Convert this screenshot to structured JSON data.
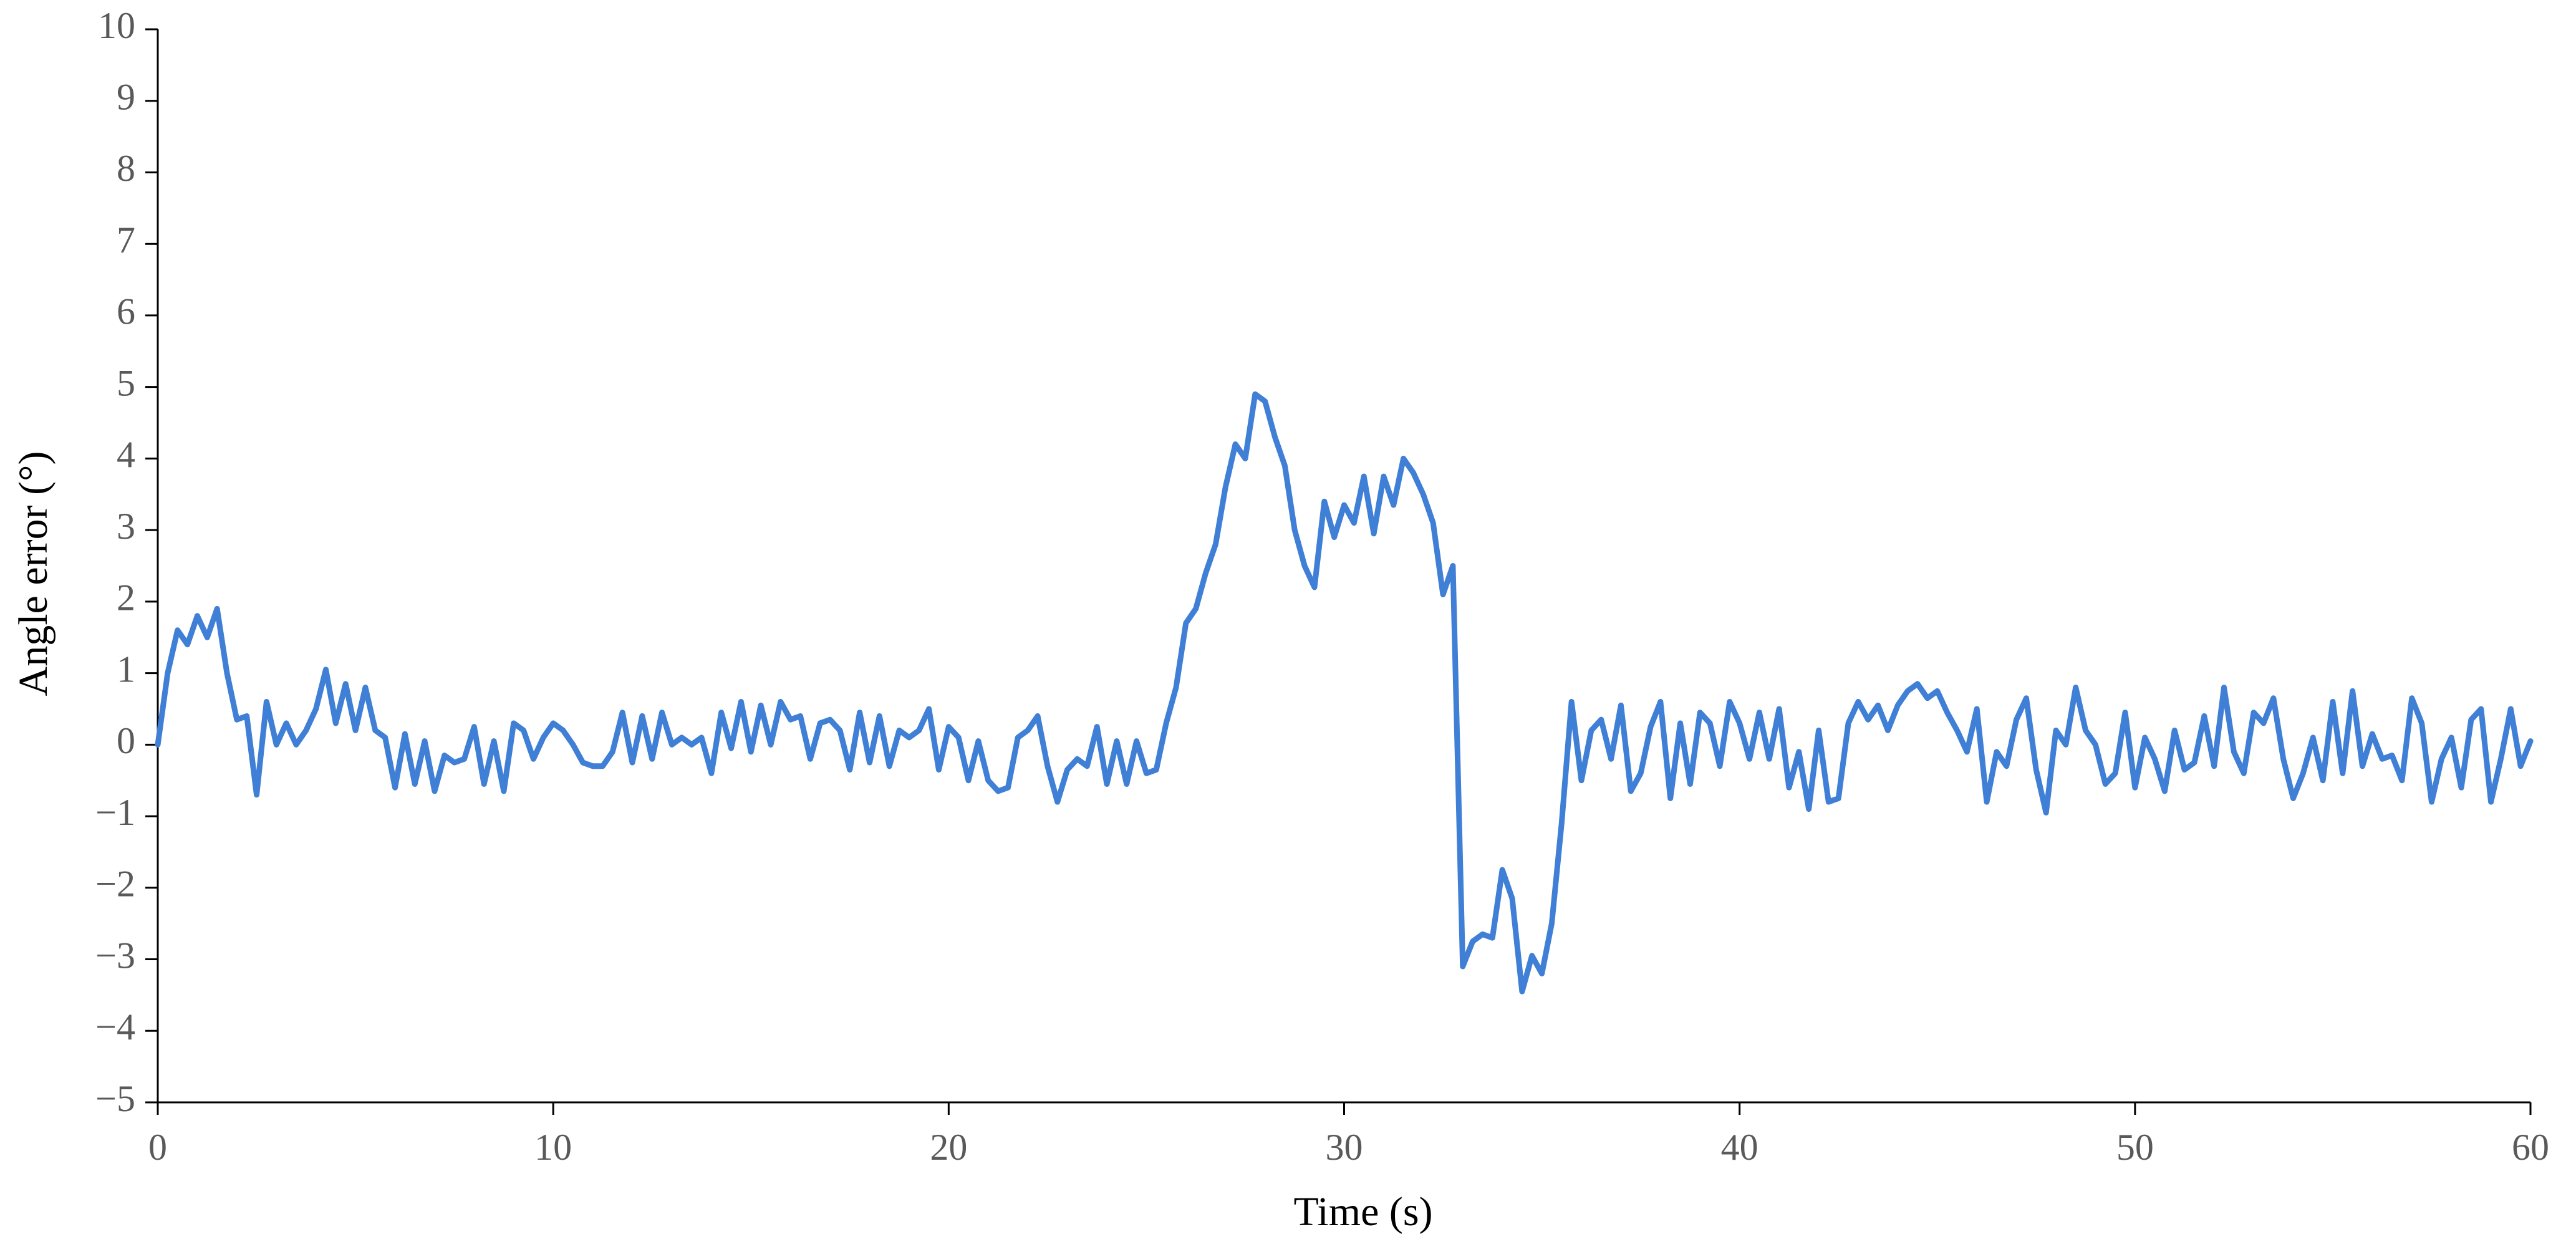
{
  "chart_data": {
    "type": "line",
    "xlabel": "Time (s)",
    "ylabel": "Angle error (°)",
    "color": "#3f7fd6",
    "xlim": [
      0,
      60
    ],
    "xticks": [
      0,
      10,
      20,
      30,
      40,
      50,
      60
    ],
    "ylim": [
      -5,
      10
    ],
    "yticks": [
      {
        "value": -5,
        "label": "−5"
      },
      {
        "value": -4,
        "label": "−4"
      },
      {
        "value": -3,
        "label": "−3"
      },
      {
        "value": -2,
        "label": "−2"
      },
      {
        "value": -1,
        "label": "−1"
      },
      0,
      1,
      2,
      3,
      4,
      5,
      6,
      7,
      8,
      9,
      10
    ],
    "grid": false,
    "x": [
      0,
      0.25,
      0.5,
      0.75,
      1,
      1.25,
      1.5,
      1.75,
      2,
      2.25,
      2.5,
      2.75,
      3,
      3.25,
      3.5,
      3.75,
      4,
      4.25,
      4.5,
      4.75,
      5,
      5.25,
      5.5,
      5.75,
      6,
      6.25,
      6.5,
      6.75,
      7,
      7.25,
      7.5,
      7.75,
      8,
      8.25,
      8.5,
      8.75,
      9,
      9.25,
      9.5,
      9.75,
      10,
      10.25,
      10.5,
      10.75,
      11,
      11.25,
      11.5,
      11.75,
      12,
      12.25,
      12.5,
      12.75,
      13,
      13.25,
      13.5,
      13.75,
      14,
      14.25,
      14.5,
      14.75,
      15,
      15.25,
      15.5,
      15.75,
      16,
      16.25,
      16.5,
      16.75,
      17,
      17.25,
      17.5,
      17.75,
      18,
      18.25,
      18.5,
      18.75,
      19,
      19.25,
      19.5,
      19.75,
      20,
      20.25,
      20.5,
      20.75,
      21,
      21.25,
      21.5,
      21.75,
      22,
      22.25,
      22.5,
      22.75,
      23,
      23.25,
      23.5,
      23.75,
      24,
      24.25,
      24.5,
      24.75,
      25,
      25.25,
      25.5,
      25.75,
      26,
      26.25,
      26.5,
      26.75,
      27,
      27.25,
      27.5,
      27.75,
      28,
      28.25,
      28.5,
      28.75,
      29,
      29.25,
      29.5,
      29.75,
      30,
      30.25,
      30.5,
      30.75,
      31,
      31.25,
      31.5,
      31.75,
      32,
      32.25,
      32.5,
      32.75,
      33,
      33.25,
      33.5,
      33.75,
      34,
      34.25,
      34.5,
      34.75,
      35,
      35.25,
      35.5,
      35.75,
      36,
      36.25,
      36.5,
      36.75,
      37,
      37.25,
      37.5,
      37.75,
      38,
      38.25,
      38.5,
      38.75,
      39,
      39.25,
      39.5,
      39.75,
      40,
      40.25,
      40.5,
      40.75,
      41,
      41.25,
      41.5,
      41.75,
      42,
      42.25,
      42.5,
      42.75,
      43,
      43.25,
      43.5,
      43.75,
      44,
      44.25,
      44.5,
      44.75,
      45,
      45.25,
      45.5,
      45.75,
      46,
      46.25,
      46.5,
      46.75,
      47,
      47.25,
      47.5,
      47.75,
      48,
      48.25,
      48.5,
      48.75,
      49,
      49.25,
      49.5,
      49.75,
      50,
      50.25,
      50.5,
      50.75,
      51,
      51.25,
      51.5,
      51.75,
      52,
      52.25,
      52.5,
      52.75,
      53,
      53.25,
      53.5,
      53.75,
      54,
      54.25,
      54.5,
      54.75,
      55,
      55.25,
      55.5,
      55.75,
      56,
      56.25,
      56.5,
      56.75,
      57,
      57.25,
      57.5,
      57.75,
      58,
      58.25,
      58.5,
      58.75,
      59,
      59.25,
      59.5,
      59.75,
      60
    ],
    "values": [
      0,
      1.0,
      1.6,
      1.4,
      1.8,
      1.5,
      1.9,
      1.0,
      0.35,
      0.4,
      -0.7,
      0.6,
      0.0,
      0.3,
      0.0,
      0.2,
      0.5,
      1.05,
      0.3,
      0.85,
      0.2,
      0.8,
      0.2,
      0.1,
      -0.6,
      0.15,
      -0.55,
      0.05,
      -0.65,
      -0.15,
      -0.25,
      -0.2,
      0.25,
      -0.55,
      0.05,
      -0.65,
      0.3,
      0.2,
      -0.2,
      0.1,
      0.3,
      0.2,
      0.0,
      -0.25,
      -0.3,
      -0.3,
      -0.1,
      0.45,
      -0.25,
      0.4,
      -0.2,
      0.45,
      0.0,
      0.1,
      0.0,
      0.1,
      -0.4,
      0.45,
      -0.05,
      0.6,
      -0.1,
      0.55,
      0.0,
      0.6,
      0.35,
      0.4,
      -0.2,
      0.3,
      0.35,
      0.2,
      -0.35,
      0.45,
      -0.25,
      0.4,
      -0.3,
      0.2,
      0.1,
      0.2,
      0.5,
      -0.35,
      0.25,
      0.1,
      -0.5,
      0.05,
      -0.5,
      -0.65,
      -0.6,
      0.1,
      0.2,
      0.4,
      -0.3,
      -0.8,
      -0.35,
      -0.2,
      -0.3,
      0.25,
      -0.55,
      0.05,
      -0.55,
      0.05,
      -0.4,
      -0.35,
      0.3,
      0.8,
      1.7,
      1.9,
      2.4,
      2.8,
      3.6,
      4.2,
      4.0,
      4.9,
      4.8,
      4.3,
      3.9,
      3.0,
      2.5,
      2.2,
      3.4,
      2.9,
      3.35,
      3.1,
      3.75,
      2.95,
      3.75,
      3.35,
      4.0,
      3.8,
      3.5,
      3.1,
      2.1,
      2.5,
      -3.1,
      -2.75,
      -2.65,
      -2.7,
      -1.75,
      -2.15,
      -3.45,
      -2.95,
      -3.2,
      -2.5,
      -1.1,
      0.6,
      -0.5,
      0.2,
      0.35,
      -0.2,
      0.55,
      -0.65,
      -0.4,
      0.25,
      0.6,
      -0.75,
      0.3,
      -0.55,
      0.45,
      0.3,
      -0.3,
      0.6,
      0.3,
      -0.2,
      0.45,
      -0.2,
      0.5,
      -0.6,
      -0.1,
      -0.9,
      0.2,
      -0.8,
      -0.75,
      0.3,
      0.6,
      0.35,
      0.55,
      0.2,
      0.55,
      0.75,
      0.85,
      0.65,
      0.75,
      0.45,
      0.2,
      -0.1,
      0.5,
      -0.8,
      -0.1,
      -0.3,
      0.35,
      0.65,
      -0.35,
      -0.95,
      0.2,
      0.0,
      0.8,
      0.2,
      0.0,
      -0.55,
      -0.4,
      0.45,
      -0.6,
      0.1,
      -0.2,
      -0.65,
      0.2,
      -0.35,
      -0.25,
      0.4,
      -0.3,
      0.8,
      -0.1,
      -0.4,
      0.45,
      0.3,
      0.65,
      -0.2,
      -0.75,
      -0.4,
      0.1,
      -0.5,
      0.6,
      -0.4,
      0.75,
      -0.3,
      0.15,
      -0.2,
      -0.15,
      -0.5,
      0.65,
      0.3,
      -0.8,
      -0.2,
      0.1,
      -0.6,
      0.35,
      0.5,
      -0.8,
      -0.2,
      0.5,
      -0.3,
      0.05
    ]
  }
}
